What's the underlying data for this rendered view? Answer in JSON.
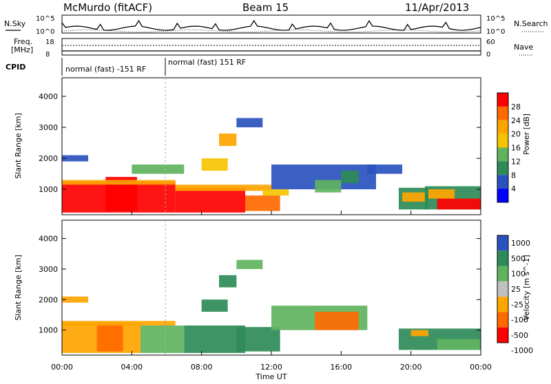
{
  "header": {
    "station": "McMurdo (fitACF)",
    "beam": "Beam 15",
    "date": "11/Apr/2013"
  },
  "top_panels": {
    "nsky_label": "N.Sky",
    "nsearch_label": "N.Search",
    "noise_ticks": [
      "10^5",
      "10^0"
    ],
    "freq_label_1": "Freq.",
    "freq_label_2": "[MHz]",
    "freq_ticks": [
      "18",
      "8"
    ],
    "nave_ticks": [
      "60",
      "0"
    ],
    "nave_label": "Nave",
    "cpid_label": "CPID",
    "cpid_segments": [
      "normal (fast) -151 RF",
      "normal (fast) 151 RF"
    ]
  },
  "colors": {
    "power": [
      "#0000ff",
      "#2a52be",
      "#2e8b57",
      "#5fb35f",
      "#f5c400",
      "#ffa500",
      "#ff6a00",
      "#ff0000"
    ],
    "velocity": [
      "#2a52be",
      "#2e8b57",
      "#5fb35f",
      "#c0c0c0",
      "#ffa500",
      "#ff6a00",
      "#ff0000"
    ]
  },
  "chart_data": [
    {
      "type": "heatmap",
      "panel": "power",
      "ylabel": "Slant Range [km]",
      "yticks": [
        "1000",
        "2000",
        "3000",
        "4000"
      ],
      "ylim": [
        180,
        4600
      ],
      "xticks": [
        "00:00",
        "04:00",
        "08:00",
        "12:00",
        "16:00",
        "20:00",
        "00:00"
      ],
      "xlim_hours": [
        0,
        24
      ],
      "colorbar_label": "Power [dB]",
      "colorbar_ticks": [
        "4",
        "8",
        "12",
        "16",
        "20",
        "24",
        "28"
      ],
      "regions": [
        {
          "t0": 0.0,
          "t1": 6.5,
          "r0": 250,
          "r1": 1250,
          "level": 7
        },
        {
          "t0": 2.5,
          "t1": 4.3,
          "r0": 300,
          "r1": 1400,
          "level": 7
        },
        {
          "t0": 6.5,
          "t1": 10.5,
          "r0": 250,
          "r1": 1050,
          "level": 7
        },
        {
          "t0": 10.5,
          "t1": 12.5,
          "r0": 300,
          "r1": 800,
          "level": 6
        },
        {
          "t0": 0.0,
          "t1": 6.5,
          "r0": 1150,
          "r1": 1300,
          "level": 5
        },
        {
          "t0": 6.5,
          "t1": 12.0,
          "r0": 950,
          "r1": 1150,
          "level": 5
        },
        {
          "t0": 11.5,
          "t1": 13.0,
          "r0": 800,
          "r1": 1000,
          "level": 4
        },
        {
          "t0": 12.0,
          "t1": 18.0,
          "r0": 1000,
          "r1": 1800,
          "level": 1
        },
        {
          "t0": 14.5,
          "t1": 16.0,
          "r0": 900,
          "r1": 1300,
          "level": 3
        },
        {
          "t0": 16.0,
          "t1": 17.0,
          "r0": 1200,
          "r1": 1600,
          "level": 2
        },
        {
          "t0": 0.0,
          "t1": 1.5,
          "r0": 1900,
          "r1": 2100,
          "level": 1
        },
        {
          "t0": 4.0,
          "t1": 7.0,
          "r0": 1500,
          "r1": 1800,
          "level": 3
        },
        {
          "t0": 8.0,
          "t1": 9.5,
          "r0": 1600,
          "r1": 2000,
          "level": 4
        },
        {
          "t0": 9.0,
          "t1": 10.0,
          "r0": 2400,
          "r1": 2800,
          "level": 5
        },
        {
          "t0": 10.0,
          "t1": 11.5,
          "r0": 3000,
          "r1": 3300,
          "level": 1
        },
        {
          "t0": 19.3,
          "t1": 21.0,
          "r0": 350,
          "r1": 1050,
          "level": 2
        },
        {
          "t0": 19.5,
          "t1": 20.8,
          "r0": 600,
          "r1": 900,
          "level": 5
        },
        {
          "t0": 20.8,
          "t1": 24.0,
          "r0": 350,
          "r1": 1100,
          "level": 2
        },
        {
          "t0": 21.5,
          "t1": 24.0,
          "r0": 350,
          "r1": 700,
          "level": 7
        },
        {
          "t0": 21.0,
          "t1": 22.5,
          "r0": 700,
          "r1": 1000,
          "level": 5
        },
        {
          "t0": 17.5,
          "t1": 19.5,
          "r0": 1500,
          "r1": 1800,
          "level": 1
        }
      ]
    },
    {
      "type": "heatmap",
      "panel": "velocity",
      "ylabel": "Slant Range [km]",
      "yticks": [
        "1000",
        "2000",
        "3000",
        "4000"
      ],
      "ylim": [
        180,
        4600
      ],
      "xticks": [
        "00:00",
        "04:00",
        "08:00",
        "12:00",
        "16:00",
        "20:00",
        "00:00"
      ],
      "xlim_hours": [
        0,
        24
      ],
      "xlabel": "Time UT",
      "colorbar_label": "Velocity [m s^-1]",
      "colorbar_ticks": [
        "1000",
        "500",
        "100",
        "25",
        "-25",
        "-100",
        "-500",
        "-1000"
      ],
      "regions": [
        {
          "t0": 0.0,
          "t1": 4.5,
          "r0": 250,
          "r1": 1250,
          "level": 4
        },
        {
          "t0": 2.0,
          "t1": 3.5,
          "r0": 300,
          "r1": 1250,
          "level": 5
        },
        {
          "t0": 4.5,
          "t1": 7.0,
          "r0": 250,
          "r1": 1150,
          "level": 2
        },
        {
          "t0": 7.0,
          "t1": 10.5,
          "r0": 250,
          "r1": 1150,
          "level": 1
        },
        {
          "t0": 10.0,
          "t1": 12.5,
          "r0": 300,
          "r1": 1100,
          "level": 1
        },
        {
          "t0": 0.0,
          "t1": 6.5,
          "r0": 1150,
          "r1": 1300,
          "level": 4
        },
        {
          "t0": 12.0,
          "t1": 17.5,
          "r0": 1000,
          "r1": 1800,
          "level": 2
        },
        {
          "t0": 14.5,
          "t1": 17.0,
          "r0": 1000,
          "r1": 1600,
          "level": 5
        },
        {
          "t0": 0.0,
          "t1": 1.5,
          "r0": 1900,
          "r1": 2100,
          "level": 4
        },
        {
          "t0": 8.0,
          "t1": 9.5,
          "r0": 1600,
          "r1": 2000,
          "level": 1
        },
        {
          "t0": 9.0,
          "t1": 10.0,
          "r0": 2400,
          "r1": 2800,
          "level": 1
        },
        {
          "t0": 10.0,
          "t1": 11.5,
          "r0": 3000,
          "r1": 3300,
          "level": 2
        },
        {
          "t0": 19.3,
          "t1": 24.0,
          "r0": 350,
          "r1": 1050,
          "level": 1
        },
        {
          "t0": 21.5,
          "t1": 24.0,
          "r0": 350,
          "r1": 700,
          "level": 2
        },
        {
          "t0": 20.0,
          "t1": 21.0,
          "r0": 800,
          "r1": 1000,
          "level": 4
        }
      ]
    }
  ]
}
